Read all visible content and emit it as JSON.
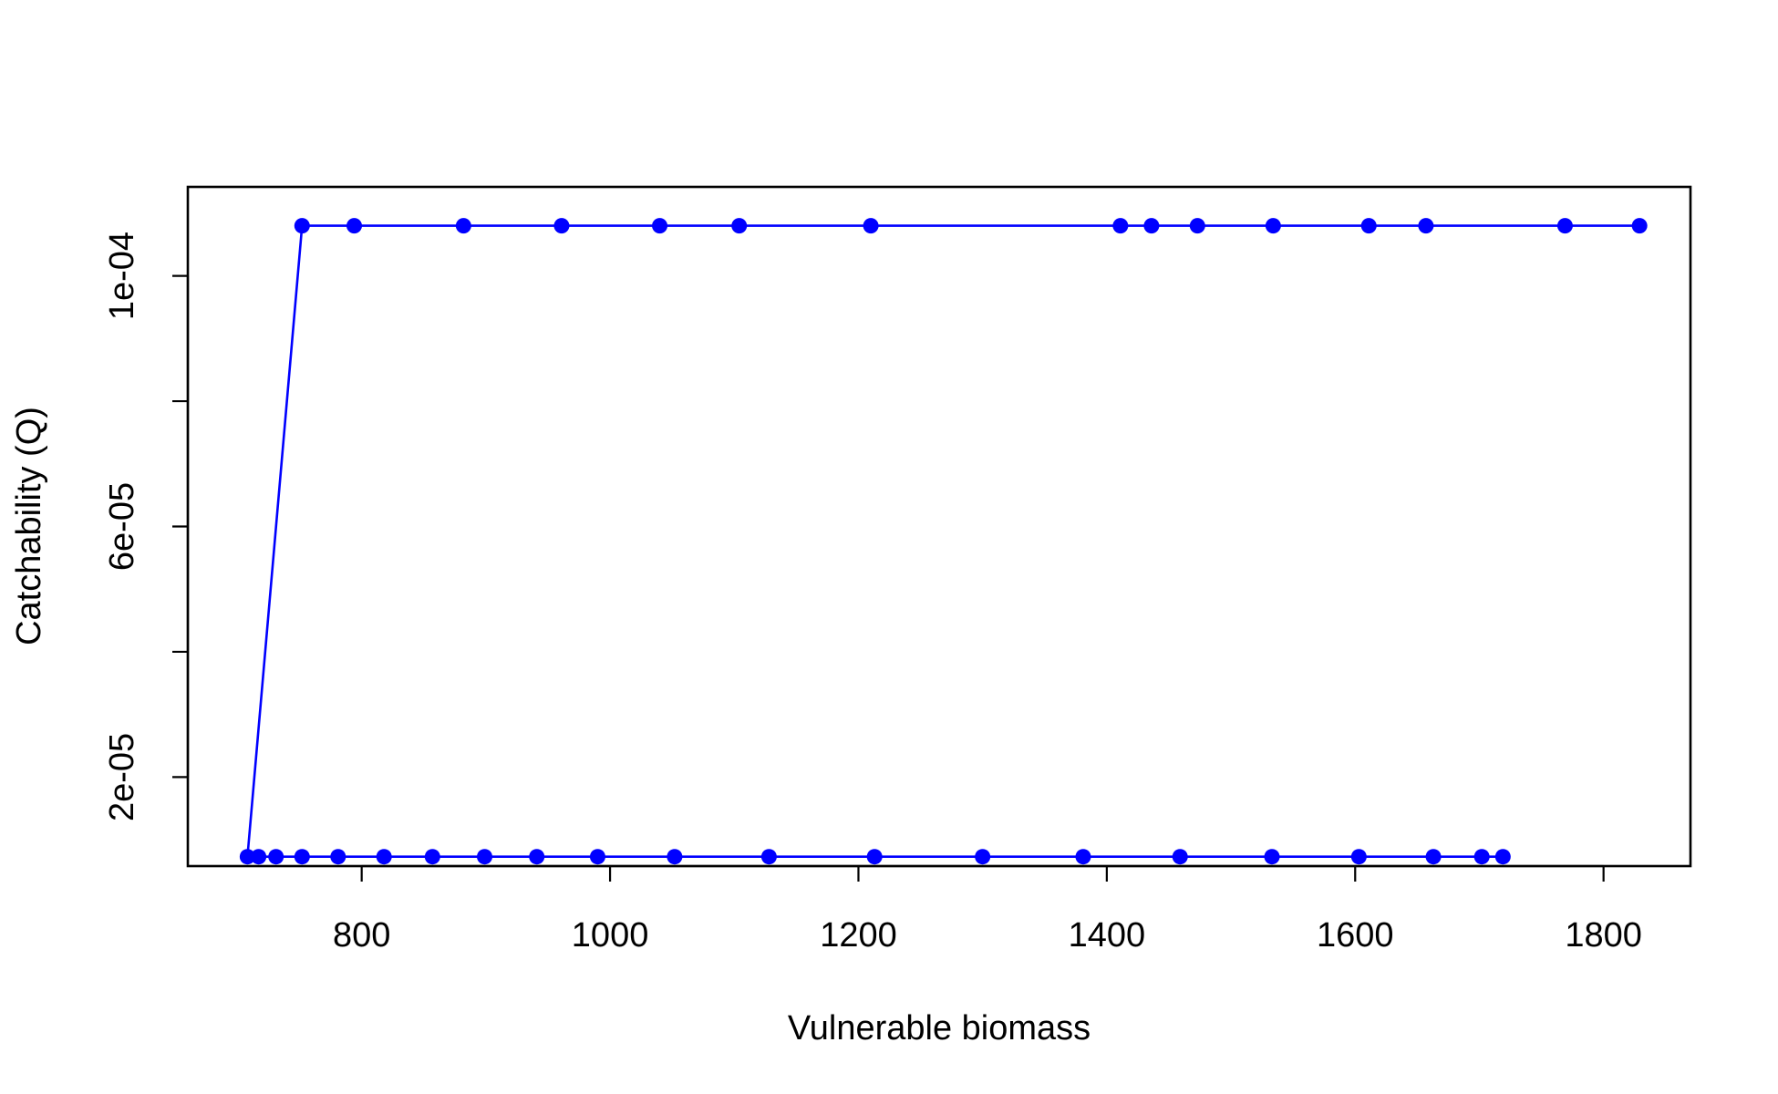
{
  "chart_data": {
    "type": "line",
    "title": "",
    "xlabel": "Vulnerable biomass",
    "ylabel": "Catchability (Q)",
    "xlim": [
      660,
      1870
    ],
    "ylim": [
      5.8e-06,
      0.0001142
    ],
    "x_ticks": [
      800,
      1000,
      1200,
      1400,
      1600,
      1800
    ],
    "x_tick_labels": [
      "800",
      "1000",
      "1200",
      "1400",
      "1600",
      "1800"
    ],
    "y_ticks": [
      2e-05,
      4e-05,
      6e-05,
      8e-05,
      0.0001
    ],
    "y_tick_labels": [
      "2e-05",
      "",
      "6e-05",
      "",
      "1e-04"
    ],
    "grid": false,
    "legend": "none",
    "series": [
      {
        "color": "#0000ff",
        "marker": "circle",
        "points": [
          [
            1719,
            7.3e-06
          ],
          [
            1702,
            7.3e-06
          ],
          [
            1663,
            7.3e-06
          ],
          [
            1603,
            7.3e-06
          ],
          [
            1533,
            7.3e-06
          ],
          [
            1459,
            7.3e-06
          ],
          [
            1381,
            7.3e-06
          ],
          [
            1300,
            7.3e-06
          ],
          [
            1213,
            7.3e-06
          ],
          [
            1128,
            7.3e-06
          ],
          [
            1052,
            7.3e-06
          ],
          [
            990,
            7.3e-06
          ],
          [
            941,
            7.3e-06
          ],
          [
            899,
            7.3e-06
          ],
          [
            857,
            7.3e-06
          ],
          [
            818,
            7.3e-06
          ],
          [
            781,
            7.3e-06
          ],
          [
            752,
            7.3e-06
          ],
          [
            731,
            7.3e-06
          ],
          [
            717,
            7.3e-06
          ],
          [
            708,
            7.3e-06
          ],
          [
            752,
            0.000108
          ],
          [
            794,
            0.000108
          ],
          [
            882,
            0.000108
          ],
          [
            961,
            0.000108
          ],
          [
            1040,
            0.000108
          ],
          [
            1104,
            0.000108
          ],
          [
            1210,
            0.000108
          ],
          [
            1411,
            0.000108
          ],
          [
            1436,
            0.000108
          ],
          [
            1473,
            0.000108
          ],
          [
            1534,
            0.000108
          ],
          [
            1611,
            0.000108
          ],
          [
            1657,
            0.000108
          ],
          [
            1769,
            0.000108
          ],
          [
            1829,
            0.000108
          ]
        ]
      }
    ]
  }
}
